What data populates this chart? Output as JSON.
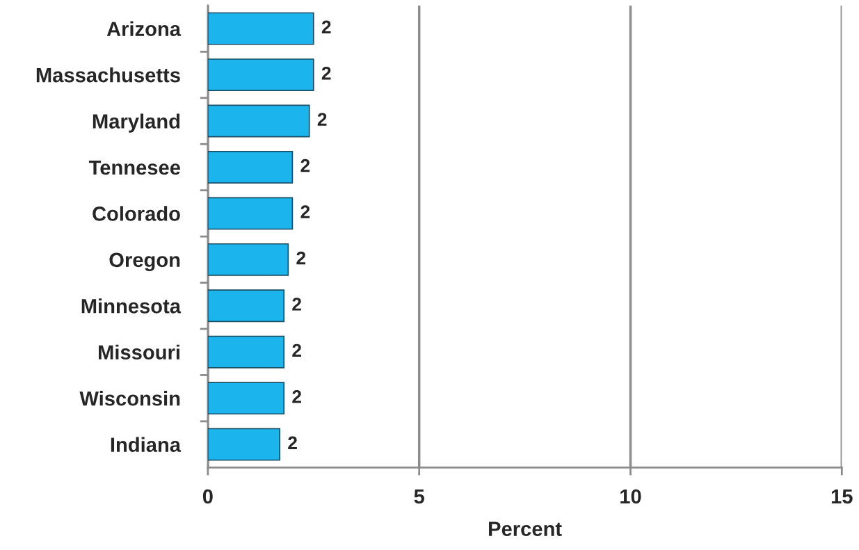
{
  "chart_data": {
    "type": "bar",
    "orientation": "horizontal",
    "xlabel": "Percent",
    "categories": [
      "Arizona",
      "Massachusetts",
      "Maryland",
      "Tennesee",
      "Colorado",
      "Oregon",
      "Minnesota",
      "Missouri",
      "Wisconsin",
      "Indiana"
    ],
    "values": [
      2.5,
      2.5,
      2.4,
      2.0,
      2.0,
      1.9,
      1.8,
      1.8,
      1.8,
      1.7
    ],
    "value_labels": [
      "2",
      "2",
      "2",
      "2",
      "2",
      "2",
      "2",
      "2",
      "2",
      "2"
    ],
    "color": "#1cb4ec",
    "xlim": [
      0,
      15
    ],
    "xticks": [
      0,
      5,
      10,
      15
    ],
    "grid": "x"
  }
}
